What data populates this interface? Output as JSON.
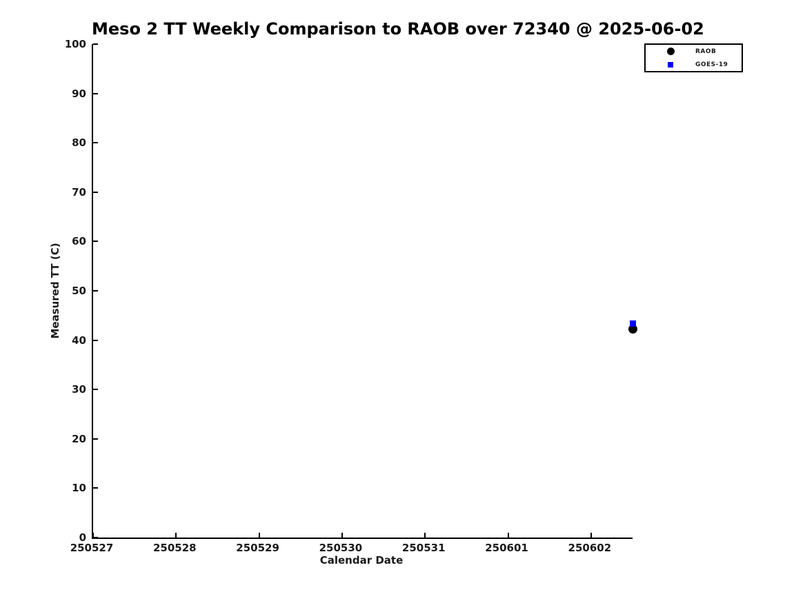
{
  "chart_data": {
    "type": "scatter",
    "title": "Meso 2 TT Weekly Comparison to RAOB over 72340 @ 2025-06-02",
    "xlabel": "Calendar Date",
    "ylabel": "Measured TT (C)",
    "x_tick_labels": [
      "250527",
      "250528",
      "250529",
      "250530",
      "250531",
      "250601",
      "250602"
    ],
    "xlim_tick_index": [
      0,
      6.5
    ],
    "yticks": [
      0,
      10,
      20,
      30,
      40,
      50,
      60,
      70,
      80,
      90,
      100
    ],
    "ylim": [
      0,
      100
    ],
    "grid": false,
    "legend_position": "outside-top-right",
    "background_color": "#ffffff",
    "series": [
      {
        "name": "RAOB",
        "marker": "circle",
        "color": "#000000",
        "marker_size_px": 13,
        "points": [
          {
            "x": 250602.5,
            "y": 42.2
          }
        ]
      },
      {
        "name": "GOES-19",
        "marker": "square",
        "color": "#0000ff",
        "marker_size_px": 9,
        "points": [
          {
            "x": 250602.5,
            "y": 43.4
          }
        ]
      }
    ]
  }
}
